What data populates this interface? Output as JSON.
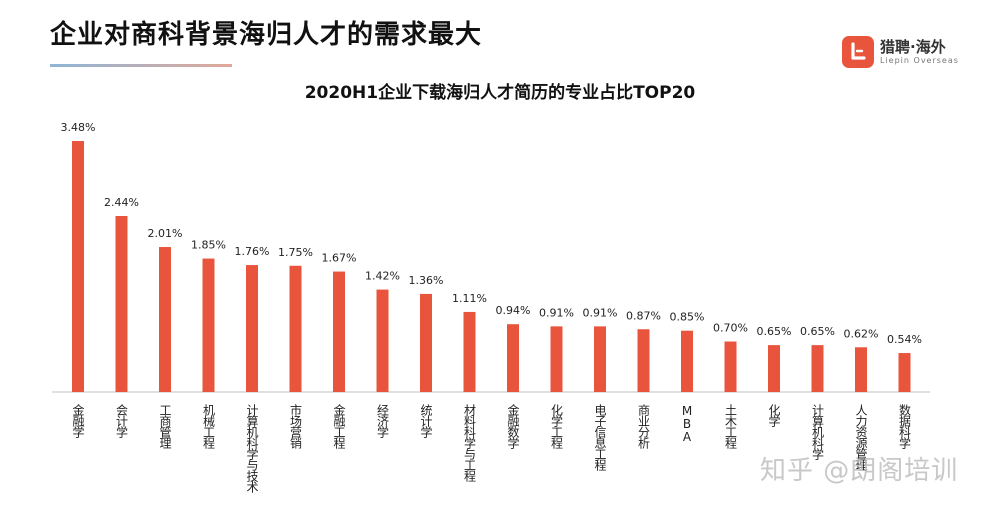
{
  "header": {
    "title": "企业对商科背景海归人才的需求最大"
  },
  "logo": {
    "name_cn": "猎聘·海外",
    "name_en": "Liepin Overseas"
  },
  "watermark": "知乎 @朗阁培训",
  "colors": {
    "bar": "#e9543c",
    "axis": "#bfbfbf"
  },
  "chart_data": {
    "type": "bar",
    "title": "2020H1企业下载海归人才简历的专业占比TOP20",
    "xlabel": "",
    "ylabel": "",
    "categories": [
      "金融学",
      "会计学",
      "工商管理",
      "机械工程",
      "计算机科学与技术",
      "市场营销",
      "金融工程",
      "经济学",
      "统计学",
      "材料科学与工程",
      "金融数学",
      "化学工程",
      "电子信息工程",
      "商业分析",
      "MBA",
      "土木工程",
      "化学",
      "计算机科学",
      "人力资源管理",
      "数据科学"
    ],
    "values": [
      3.48,
      2.44,
      2.01,
      1.85,
      1.76,
      1.75,
      1.67,
      1.42,
      1.36,
      1.11,
      0.94,
      0.91,
      0.91,
      0.87,
      0.85,
      0.7,
      0.65,
      0.65,
      0.62,
      0.54
    ],
    "value_labels": [
      "3.48%",
      "2.44%",
      "2.01%",
      "1.85%",
      "1.76%",
      "1.75%",
      "1.67%",
      "1.42%",
      "1.36%",
      "1.11%",
      "0.94%",
      "0.91%",
      "0.91%",
      "0.87%",
      "0.85%",
      "0.70%",
      "0.65%",
      "0.65%",
      "0.62%",
      "0.54%"
    ],
    "ylim": [
      0,
      3.48
    ],
    "grid": false,
    "legend": "none"
  }
}
